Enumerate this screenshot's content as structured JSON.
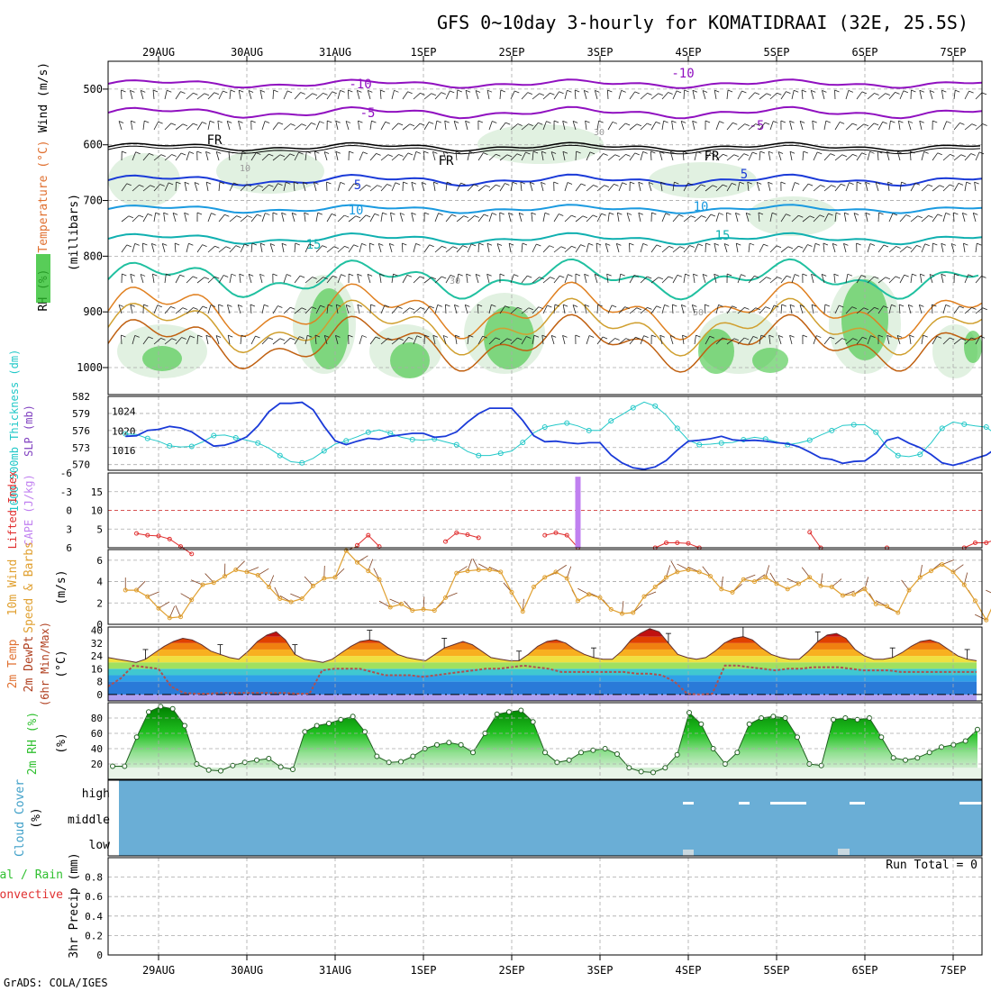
{
  "colors": {
    "grid": "#aaaaaa",
    "temp_purple": "#9010c0",
    "temp_black": "#000000",
    "temp_blue": "#1a3ad8",
    "temp_lightblue": "#1a9ae0",
    "temp_teal": "#10b0b0",
    "rh_green": "#2ec02e",
    "thickness": "#22c8c8",
    "slp": "#1a3ad8",
    "lifted_index": "#e03030",
    "cape": "#c080f0",
    "wind_speed": "#e0a030",
    "barbs": "#804020",
    "cloud_fill": "#6aaed6",
    "rh_fill": "#30c030",
    "dewpoint": "#b05050"
  },
  "chart_data": {
    "type": "multi-panel meteogram",
    "title": "GFS 0~10day 3-hourly for KOMATIDRAAI (32E, 25.5S)",
    "credit": "GrADS: COLA/IGES",
    "x_tick_labels": [
      "29AUG",
      "30AUG",
      "31AUG",
      "1SEP",
      "2SEP",
      "3SEP",
      "4SEP",
      "5SEP",
      "6SEP",
      "7SEP"
    ],
    "panels": [
      {
        "id": "upper_air",
        "type": "contour",
        "ylabel_parts": [
          "RH (%)",
          "Temperature (°C)",
          "Wind (m/s)"
        ],
        "ylabel_right": "(millibars)",
        "y_tick_labels": [
          "500",
          "600",
          "700",
          "800",
          "900",
          "1000"
        ],
        "ylim": [
          1000,
          450
        ],
        "contour_labels": [
          "-10",
          "-10",
          "-5",
          "-5",
          "FR",
          "FR",
          "FR",
          "5",
          "5",
          "10",
          "10",
          "15",
          "15",
          "10",
          "30",
          "30",
          "50"
        ]
      },
      {
        "id": "thickness_slp",
        "type": "line",
        "ylabel_left": "1000-500mb Thickness (dm)",
        "ylabel_right": "SLP (mb)",
        "left_tick_labels": [
          "582",
          "579",
          "576",
          "573",
          "570"
        ],
        "right_tick_labels": [
          "1024",
          "1020",
          "1016"
        ],
        "left_ylim": [
          569,
          582
        ],
        "right_ylim": [
          1012,
          1027
        ],
        "series": [
          {
            "name": "1000-500mb Thickness (dm)",
            "axis": "left",
            "values": [
              575.4,
              575.3,
              574.6,
              574.1,
              573.3,
              573.1,
              573.2,
              574,
              575.1,
              575.2,
              574.7,
              574.3,
              573.8,
              572.9,
              571.6,
              570.5,
              570.3,
              571.1,
              572.4,
              573.6,
              574.2,
              574.9,
              575.7,
              576.1,
              575.5,
              574.8,
              574.4,
              574.3,
              574.5,
              574,
              573.5,
              572.3,
              571.6,
              571.6,
              572,
              572.4,
              573.9,
              575.6,
              576.6,
              577,
              577.3,
              576.8,
              576,
              576,
              577.7,
              578.8,
              580,
              581,
              580.3,
              578.7,
              576.4,
              574.3,
              573.5,
              573.6,
              573.8,
              573.9,
              574.4,
              574.8,
              574.5,
              574,
              573.5,
              573.8,
              574.3,
              575.2,
              576,
              576.9,
              577,
              577,
              575.7,
              573.1,
              571.6,
              571.4,
              571.8,
              573.8,
              576.4,
              577.5,
              577.1,
              576.8,
              576.6,
              575.1,
              574.2
            ]
          },
          {
            "name": "SLP (mb)",
            "axis": "right",
            "values": [
              1018.9,
              1019,
              1020.1,
              1020.3,
              1020.9,
              1020.6,
              1019.8,
              1018.3,
              1016.9,
              1017.1,
              1017.8,
              1018.8,
              1021,
              1023.9,
              1025.6,
              1025.6,
              1025.8,
              1024.3,
              1020.9,
              1018,
              1017.2,
              1017.9,
              1018.5,
              1018.3,
              1018.9,
              1019.2,
              1019.5,
              1019.5,
              1018.7,
              1018.9,
              1019.8,
              1021.8,
              1023.5,
              1024.6,
              1024.6,
              1024.6,
              1022.1,
              1019,
              1017.8,
              1017.9,
              1017.6,
              1017.4,
              1017.6,
              1017.6,
              1015.1,
              1013.5,
              1012.5,
              1012.2,
              1012.7,
              1014,
              1016.1,
              1017.9,
              1018.1,
              1018.4,
              1018.9,
              1018.2,
              1018,
              1018.1,
              1017.9,
              1017.6,
              1017.4,
              1016.8,
              1015.7,
              1014.5,
              1014.2,
              1013.4,
              1013.8,
              1013.9,
              1015.5,
              1018.1,
              1018.7,
              1017.5,
              1016.6,
              1015.2,
              1013.5,
              1013,
              1013.6,
              1014.4,
              1015.1,
              1016.6
            ]
          }
        ]
      },
      {
        "id": "stability",
        "type": "line+bar",
        "ylabel_left": "Lifted Index",
        "ylabel_right": "CAPE (J/kg)",
        "left_tick_labels": [
          "-6",
          "-3",
          "0",
          "3",
          "6"
        ],
        "right_tick_labels": [
          "15",
          "10",
          "5"
        ],
        "left_ylim": [
          6,
          -6
        ],
        "series": [
          {
            "name": "Lifted Index",
            "values_at_hours": [
              [
                6,
                3.7
              ],
              [
                9,
                4.0
              ],
              [
                12,
                4.1
              ],
              [
                15,
                4.6
              ],
              [
                18,
                5.8
              ],
              [
                21,
                7.0
              ],
              [
                66,
                5.6
              ],
              [
                69,
                4.0
              ],
              [
                72,
                5.8
              ],
              [
                90,
                5.0
              ],
              [
                93,
                3.6
              ],
              [
                96,
                3.9
              ],
              [
                99,
                4.4
              ],
              [
                117,
                4.0
              ],
              [
                120,
                3.6
              ],
              [
                123,
                4.0
              ],
              [
                126,
                6.0
              ],
              [
                147,
                6.0
              ],
              [
                150,
                5.2
              ],
              [
                153,
                5.2
              ],
              [
                156,
                5.3
              ],
              [
                159,
                6.0
              ],
              [
                189,
                3.5
              ],
              [
                192,
                6.0
              ],
              [
                210,
                6.0
              ],
              [
                231,
                6.0
              ],
              [
                234,
                5.2
              ],
              [
                237,
                5.2
              ],
              [
                240,
                4.6
              ],
              [
                243,
                6.0
              ],
              [
                261,
                6.0
              ],
              [
                264,
                5.0
              ],
              [
                267,
                6.0
              ],
              [
                284,
                6.0
              ]
            ]
          },
          {
            "name": "CAPE (J/kg)",
            "bars": [
              [
                126,
                19
              ]
            ]
          }
        ]
      },
      {
        "id": "wind10m",
        "type": "line",
        "ylabel": "10m Wind Speed & Barbs (m/s)",
        "y_tick_labels": [
          "0",
          "2",
          "4",
          "6"
        ],
        "ylim": [
          0,
          7
        ],
        "series": [
          {
            "name": "10m Wind Speed",
            "values": [
              3.2,
              3.2,
              2.6,
              1.5,
              0.6,
              0.7,
              2.3,
              3.7,
              3.9,
              4.5,
              5.1,
              4.9,
              4.6,
              3.5,
              2.4,
              2.1,
              2.4,
              3.6,
              4.3,
              4.4,
              6.9,
              5.8,
              5.0,
              4.2,
              1.6,
              1.9,
              1.3,
              1.4,
              1.3,
              2.5,
              4.8,
              5.0,
              5.1,
              5.1,
              4.9,
              3.0,
              1.2,
              3.5,
              4.4,
              4.9,
              4.3,
              2.2,
              2.8,
              2.5,
              1.4,
              1.0,
              1.1,
              2.6,
              3.5,
              4.4,
              4.9,
              5.1,
              4.9,
              4.5,
              3.3,
              3.0,
              4.2,
              4.0,
              4.4,
              3.8,
              3.3,
              3.8,
              4.4,
              3.6,
              3.5,
              2.7,
              2.8,
              3.3,
              1.9,
              1.7,
              1.1,
              3.2,
              4.4,
              5.0,
              5.6,
              4.9,
              3.7,
              2.2,
              0.4,
              2.7,
              2.8,
              1.4,
              1.2,
              1.9,
              2.1,
              2.0
            ]
          }
        ]
      },
      {
        "id": "temperature2m",
        "type": "area+line",
        "ylabel": "2m Temp 2m DewPt (6hr Min/Max) (°C)",
        "y_tick_labels": [
          "0",
          "8",
          "16",
          "24",
          "32",
          "40"
        ],
        "ylim": [
          -4,
          42
        ],
        "series": [
          {
            "name": "2m Temp",
            "values": [
              23,
              22,
              21,
              20,
              22,
              26,
              30,
              33,
              35,
              34,
              31,
              27,
              25,
              23,
              22,
              27,
              33,
              37,
              39,
              34,
              25,
              22,
              21,
              20,
              22,
              26,
              30,
              33,
              34,
              33,
              29,
              25,
              23,
              22,
              21,
              25,
              29,
              31,
              33,
              31,
              27,
              23,
              22,
              21,
              21,
              25,
              30,
              33,
              34,
              32,
              28,
              25,
              23,
              22,
              22,
              27,
              34,
              38,
              41,
              39,
              32,
              25,
              23,
              22,
              23,
              27,
              32,
              35,
              36,
              34,
              29,
              25,
              23,
              22,
              22,
              27,
              33,
              37,
              38,
              35,
              28,
              24,
              22,
              22,
              23,
              26,
              30,
              33,
              34,
              32,
              28,
              24,
              22,
              21
            ]
          },
          {
            "name": "2m DewPt",
            "values": [
              5,
              10,
              18,
              17,
              16,
              5,
              1,
              0.5,
              0.5,
              1,
              1,
              1,
              1,
              1,
              1,
              0.5,
              0.5,
              15,
              16,
              16,
              16,
              14,
              12,
              12,
              12,
              11,
              12,
              13,
              14,
              15,
              16,
              16,
              17,
              18,
              17,
              16,
              14,
              14,
              14,
              14,
              14,
              14,
              13,
              13,
              12,
              8,
              0.5,
              0,
              0.5,
              18,
              18,
              17,
              16,
              15,
              16,
              16,
              17,
              17,
              17,
              16,
              15,
              15,
              15,
              14,
              14,
              14,
              14,
              14,
              14,
              14
            ]
          }
        ]
      },
      {
        "id": "rh2m",
        "type": "area",
        "ylabel": "2m RH (%)",
        "y_tick_labels": [
          "20",
          "40",
          "60",
          "80"
        ],
        "ylim": [
          0,
          100
        ],
        "series": [
          {
            "name": "2m RH",
            "values": [
              17,
              17,
              55,
              88,
              95,
              92,
              70,
              20,
              12,
              11,
              18,
              22,
              25,
              27,
              16,
              13,
              62,
              70,
              73,
              78,
              82,
              62,
              30,
              22,
              23,
              30,
              40,
              45,
              48,
              45,
              35,
              60,
              85,
              88,
              90,
              75,
              35,
              22,
              25,
              35,
              38,
              40,
              33,
              15,
              10,
              9,
              15,
              32,
              87,
              72,
              40,
              20,
              35,
              72,
              80,
              82,
              80,
              55,
              20,
              18,
              78,
              80,
              78,
              80,
              55,
              28,
              25,
              28,
              35,
              42,
              45,
              50,
              65
            ]
          }
        ]
      },
      {
        "id": "cloud_cover",
        "type": "band",
        "ylabel": "Cloud Cover (%)",
        "y_tick_labels": [
          "high",
          "middle",
          "low"
        ]
      },
      {
        "id": "precip",
        "type": "bar",
        "ylabel_left_parts": [
          "Total / Rain",
          "Convective"
        ],
        "ylabel_right": "3hr Precip (mm)",
        "y_tick_labels": [
          "0",
          "0.2",
          "0.4",
          "0.6",
          "0.8"
        ],
        "ylim": [
          0,
          1
        ],
        "annotation": "Run Total = 0",
        "values": []
      }
    ]
  }
}
